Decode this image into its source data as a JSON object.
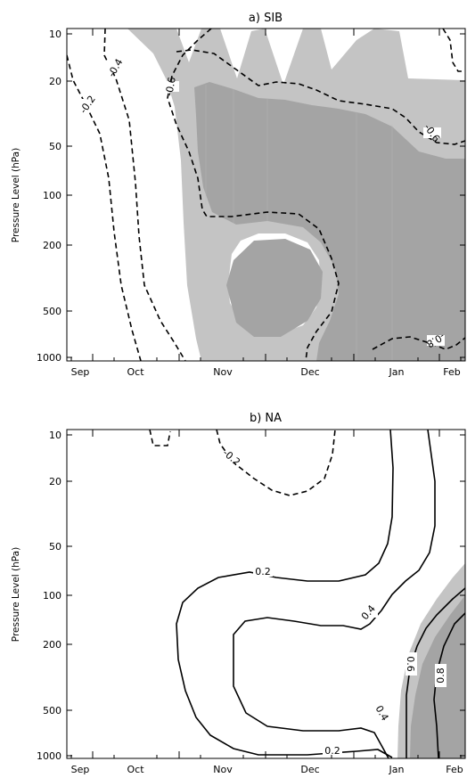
{
  "chart_data": [
    {
      "type": "contour",
      "title": "a) SIB",
      "ylabel": "Pressure Level (hPa)",
      "xlabel": "",
      "x_ticks": [
        "Sep",
        "Oct",
        "Nov",
        "Dec",
        "Jan",
        "Feb"
      ],
      "y_ticks": [
        "10",
        "20",
        "50",
        "100",
        "200",
        "500",
        "1000"
      ],
      "y_scale": "log",
      "y_reversed": true,
      "shading": {
        "levels": [
          0.5,
          0.7
        ],
        "colors": [
          "#c4c4c4",
          "#a4a4a4"
        ]
      },
      "contour_labels": [
        {
          "text": "-0.2",
          "x": "Sep 26",
          "y": 30
        },
        {
          "text": "-0.4",
          "x": "Oct 9",
          "y": 14
        },
        {
          "text": "-0.6",
          "x": "Oct 28",
          "y": 27
        },
        {
          "text": "-0.6",
          "x": "Feb 1",
          "y": 45
        },
        {
          "text": "-0.8",
          "x": "Jan 31",
          "y": 900
        }
      ]
    },
    {
      "type": "contour",
      "title": "b) NA",
      "ylabel": "Pressure Level (hPa)",
      "xlabel": "",
      "x_ticks": [
        "Sep",
        "Oct",
        "Nov",
        "Dec",
        "Jan",
        "Feb"
      ],
      "y_ticks": [
        "10",
        "20",
        "50",
        "100",
        "200",
        "500",
        "1000"
      ],
      "y_scale": "log",
      "y_reversed": true,
      "shading": {
        "levels": [
          0.5,
          0.7
        ],
        "colors": [
          "#c4c4c4",
          "#a4a4a4"
        ]
      },
      "contour_labels": [
        {
          "text": "-0.2",
          "x": "Nov 15",
          "y": 13
        },
        {
          "text": "0.2",
          "x": "Nov 28",
          "y": 92
        },
        {
          "text": "0.4",
          "x": "Jan 2",
          "y": 130
        },
        {
          "text": "0.6",
          "x": "Jan 17",
          "y": 280
        },
        {
          "text": "0.8",
          "x": "Feb 4",
          "y": 330
        },
        {
          "text": "0.4",
          "x": "Dec 30",
          "y": 560
        },
        {
          "text": "0.2",
          "x": "Dec 28",
          "y": 920
        }
      ]
    }
  ]
}
